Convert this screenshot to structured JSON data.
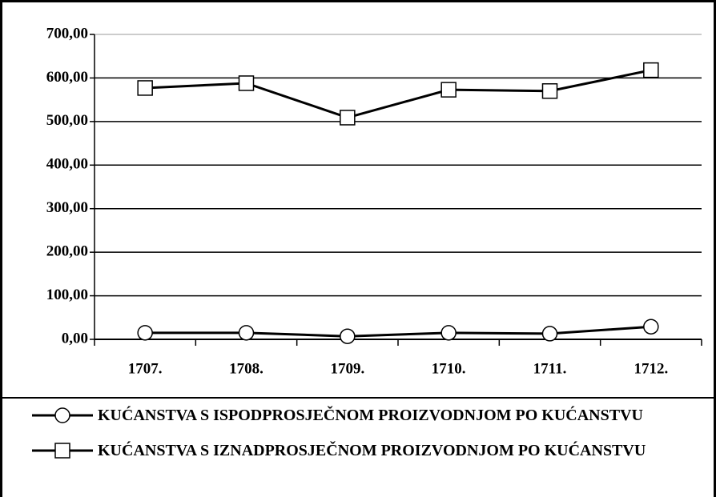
{
  "chart_data": {
    "type": "line",
    "categories": [
      "1707.",
      "1708.",
      "1709.",
      "1710.",
      "1711.",
      "1712."
    ],
    "series": [
      {
        "name": "KUĆANSTVA S ISPODPROSJEČNOM PROIZVODNJOM PO KUĆANSTVU",
        "color": "#000000",
        "marker": "circle",
        "values": [
          15,
          15,
          7,
          15,
          13,
          29
        ]
      },
      {
        "name": "KUĆANSTVA S IZNADPROSJEČNOM PROIZVODNJOM PO KUĆANSTVU",
        "color": "#000000",
        "marker": "square",
        "values": [
          577,
          588,
          509,
          573,
          570,
          618
        ]
      }
    ],
    "ylim": [
      0,
      700
    ],
    "yticks": [
      {
        "value": 0,
        "label": "0,00"
      },
      {
        "value": 100,
        "label": "100,00"
      },
      {
        "value": 200,
        "label": "200,00"
      },
      {
        "value": 300,
        "label": "300,00"
      },
      {
        "value": 400,
        "label": "400,00"
      },
      {
        "value": 500,
        "label": "500,00"
      },
      {
        "value": 600,
        "label": "600,00"
      },
      {
        "value": 700,
        "label": "700,00"
      }
    ],
    "grid": true,
    "legend": "bottom"
  }
}
